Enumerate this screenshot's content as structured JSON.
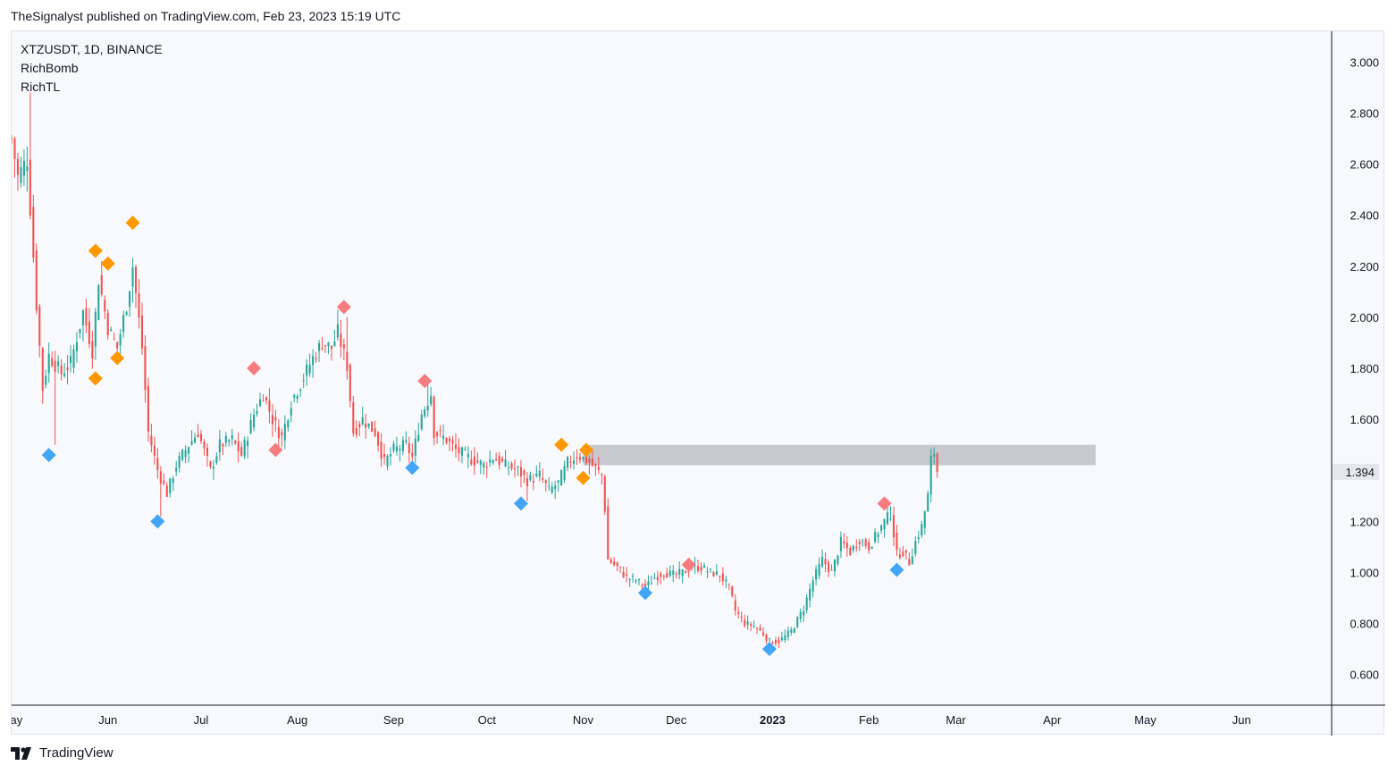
{
  "header": {
    "caption": "TheSignalyst published on TradingView.com, Feb 23, 2023 15:19 UTC"
  },
  "legend": {
    "symbol_line": "XTZUSDT, 1D, BINANCE",
    "indicator_1": "RichBomb",
    "indicator_2": "RichTL"
  },
  "footer": {
    "brand": "TradingView"
  },
  "colors": {
    "up": "#26a69a",
    "down": "#ef5350",
    "zone": "#c4c6cc",
    "orange_marker": "#ff9800",
    "red_marker": "#f77c80",
    "blue_marker": "#42a5f5",
    "bg": "#f8f9fd"
  },
  "chart_data": {
    "type": "candlestick",
    "symbol": "XTZUSDT",
    "interval": "1D",
    "exchange": "BINANCE",
    "y_axis": {
      "ticks": [
        0.6,
        0.8,
        1.0,
        1.2,
        1.4,
        1.6,
        1.8,
        2.0,
        2.2,
        2.4,
        2.6,
        2.8,
        3.0
      ],
      "tick_labels": [
        "0.600",
        "0.800",
        "1.000",
        "1.200",
        "1.400",
        "1.600",
        "1.800",
        "2.000",
        "2.200",
        "2.400",
        "2.600",
        "2.800",
        "3.000"
      ],
      "range": [
        0.48,
        3.12
      ]
    },
    "x_axis": {
      "range": [
        "2022-05-01",
        "2023-06-30"
      ],
      "ticks": [
        {
          "date": "2022-05-01",
          "label": "May"
        },
        {
          "date": "2022-06-01",
          "label": "Jun"
        },
        {
          "date": "2022-07-01",
          "label": "Jul"
        },
        {
          "date": "2022-08-01",
          "label": "Aug"
        },
        {
          "date": "2022-09-01",
          "label": "Sep"
        },
        {
          "date": "2022-10-01",
          "label": "Oct"
        },
        {
          "date": "2022-11-01",
          "label": "Nov"
        },
        {
          "date": "2022-12-01",
          "label": "Dec"
        },
        {
          "date": "2023-01-01",
          "label": "2023",
          "bold": true
        },
        {
          "date": "2023-02-01",
          "label": "Feb"
        },
        {
          "date": "2023-03-01",
          "label": "Mar"
        },
        {
          "date": "2023-04-01",
          "label": "Apr"
        },
        {
          "date": "2023-05-01",
          "label": "May"
        },
        {
          "date": "2023-06-01",
          "label": "Jun"
        }
      ]
    },
    "last_price": {
      "value": 1.394,
      "label": "1.394"
    },
    "zone": {
      "from": "2022-11-01",
      "to": "2023-04-15",
      "low": 1.42,
      "high": 1.5
    },
    "path_points": [
      [
        "2022-05-01",
        2.7
      ],
      [
        "2022-05-03",
        2.55
      ],
      [
        "2022-05-06",
        2.62
      ],
      [
        "2022-05-09",
        2.05
      ],
      [
        "2022-05-11",
        1.72
      ],
      [
        "2022-05-13",
        1.85
      ],
      [
        "2022-05-17",
        1.78
      ],
      [
        "2022-05-20",
        1.82
      ],
      [
        "2022-05-24",
        2.02
      ],
      [
        "2022-05-27",
        1.87
      ],
      [
        "2022-05-29",
        2.15
      ],
      [
        "2022-06-01",
        1.96
      ],
      [
        "2022-06-04",
        1.88
      ],
      [
        "2022-06-07",
        2.05
      ],
      [
        "2022-06-09",
        2.2
      ],
      [
        "2022-06-12",
        1.88
      ],
      [
        "2022-06-14",
        1.55
      ],
      [
        "2022-06-17",
        1.4
      ],
      [
        "2022-06-20",
        1.31
      ],
      [
        "2022-06-23",
        1.42
      ],
      [
        "2022-06-27",
        1.5
      ],
      [
        "2022-06-30",
        1.55
      ],
      [
        "2022-07-04",
        1.4
      ],
      [
        "2022-07-07",
        1.5
      ],
      [
        "2022-07-11",
        1.52
      ],
      [
        "2022-07-14",
        1.46
      ],
      [
        "2022-07-18",
        1.62
      ],
      [
        "2022-07-21",
        1.7
      ],
      [
        "2022-07-24",
        1.6
      ],
      [
        "2022-07-27",
        1.53
      ],
      [
        "2022-07-30",
        1.67
      ],
      [
        "2022-08-02",
        1.74
      ],
      [
        "2022-08-06",
        1.84
      ],
      [
        "2022-08-09",
        1.9
      ],
      [
        "2022-08-12",
        1.88
      ],
      [
        "2022-08-14",
        1.94
      ],
      [
        "2022-08-17",
        1.81
      ],
      [
        "2022-08-19",
        1.55
      ],
      [
        "2022-08-22",
        1.6
      ],
      [
        "2022-08-26",
        1.55
      ],
      [
        "2022-08-29",
        1.43
      ],
      [
        "2022-09-01",
        1.48
      ],
      [
        "2022-09-05",
        1.5
      ],
      [
        "2022-09-07",
        1.45
      ],
      [
        "2022-09-10",
        1.62
      ],
      [
        "2022-09-13",
        1.7
      ],
      [
        "2022-09-14",
        1.55
      ],
      [
        "2022-09-18",
        1.52
      ],
      [
        "2022-09-21",
        1.48
      ],
      [
        "2022-09-25",
        1.45
      ],
      [
        "2022-09-30",
        1.42
      ],
      [
        "2022-10-03",
        1.45
      ],
      [
        "2022-10-07",
        1.42
      ],
      [
        "2022-10-11",
        1.4
      ],
      [
        "2022-10-14",
        1.36
      ],
      [
        "2022-10-18",
        1.38
      ],
      [
        "2022-10-21",
        1.32
      ],
      [
        "2022-10-24",
        1.35
      ],
      [
        "2022-10-27",
        1.43
      ],
      [
        "2022-10-30",
        1.46
      ],
      [
        "2022-11-02",
        1.44
      ],
      [
        "2022-11-04",
        1.42
      ],
      [
        "2022-11-07",
        1.38
      ],
      [
        "2022-11-08",
        1.25
      ],
      [
        "2022-11-09",
        1.05
      ],
      [
        "2022-11-12",
        1.02
      ],
      [
        "2022-11-15",
        0.98
      ],
      [
        "2022-11-18",
        0.97
      ],
      [
        "2022-11-21",
        0.94
      ],
      [
        "2022-11-24",
        0.98
      ],
      [
        "2022-11-27",
        1.0
      ],
      [
        "2022-11-30",
        0.99
      ],
      [
        "2022-12-03",
        1.0
      ],
      [
        "2022-12-06",
        1.02
      ],
      [
        "2022-12-09",
        1.02
      ],
      [
        "2022-12-12",
        1.0
      ],
      [
        "2022-12-15",
        0.99
      ],
      [
        "2022-12-18",
        0.94
      ],
      [
        "2022-12-20",
        0.85
      ],
      [
        "2022-12-23",
        0.8
      ],
      [
        "2022-12-26",
        0.79
      ],
      [
        "2022-12-29",
        0.76
      ],
      [
        "2022-12-31",
        0.73
      ],
      [
        "2023-01-03",
        0.73
      ],
      [
        "2023-01-07",
        0.77
      ],
      [
        "2023-01-11",
        0.86
      ],
      [
        "2023-01-14",
        0.97
      ],
      [
        "2023-01-17",
        1.05
      ],
      [
        "2023-01-20",
        1.0
      ],
      [
        "2023-01-23",
        1.12
      ],
      [
        "2023-01-26",
        1.08
      ],
      [
        "2023-01-29",
        1.13
      ],
      [
        "2023-02-01",
        1.1
      ],
      [
        "2023-02-04",
        1.16
      ],
      [
        "2023-02-06",
        1.2
      ],
      [
        "2023-02-08",
        1.23
      ],
      [
        "2023-02-10",
        1.07
      ],
      [
        "2023-02-12",
        1.08
      ],
      [
        "2023-02-14",
        1.04
      ],
      [
        "2023-02-16",
        1.12
      ],
      [
        "2023-02-18",
        1.18
      ],
      [
        "2023-02-20",
        1.3
      ],
      [
        "2023-02-21",
        1.44
      ],
      [
        "2023-02-22",
        1.47
      ],
      [
        "2023-02-23",
        1.394
      ]
    ],
    "spikes": [
      {
        "date": "2022-05-07",
        "high": 2.88
      },
      {
        "date": "2022-05-15",
        "low": 1.5
      },
      {
        "date": "2022-06-18",
        "low": 1.22
      },
      {
        "date": "2022-07-26",
        "low": 1.49
      },
      {
        "date": "2022-08-17",
        "high": 2.0
      },
      {
        "date": "2022-09-12",
        "high": 1.74
      },
      {
        "date": "2022-10-14",
        "low": 1.28
      },
      {
        "date": "2022-11-21",
        "low": 0.93
      },
      {
        "date": "2022-12-31",
        "low": 0.71
      },
      {
        "date": "2023-02-08",
        "high": 1.26
      },
      {
        "date": "2023-02-15",
        "low": 1.03
      },
      {
        "date": "2023-02-22",
        "high": 1.49
      }
    ],
    "markers": [
      {
        "date": "2022-05-28",
        "price": 2.26,
        "type": "orange"
      },
      {
        "date": "2022-06-01",
        "price": 2.21,
        "type": "orange"
      },
      {
        "date": "2022-06-09",
        "price": 2.37,
        "type": "orange"
      },
      {
        "date": "2022-05-28",
        "price": 1.76,
        "type": "orange"
      },
      {
        "date": "2022-06-04",
        "price": 1.84,
        "type": "orange"
      },
      {
        "date": "2022-05-13",
        "price": 1.46,
        "type": "blue"
      },
      {
        "date": "2022-06-17",
        "price": 1.2,
        "type": "blue"
      },
      {
        "date": "2022-07-25",
        "price": 1.48,
        "type": "red"
      },
      {
        "date": "2022-07-18",
        "price": 1.8,
        "type": "red"
      },
      {
        "date": "2022-08-16",
        "price": 2.04,
        "type": "red"
      },
      {
        "date": "2022-09-07",
        "price": 1.41,
        "type": "blue"
      },
      {
        "date": "2022-09-11",
        "price": 1.75,
        "type": "red"
      },
      {
        "date": "2022-10-12",
        "price": 1.27,
        "type": "blue"
      },
      {
        "date": "2022-10-25",
        "price": 1.5,
        "type": "orange"
      },
      {
        "date": "2022-11-02",
        "price": 1.48,
        "type": "orange"
      },
      {
        "date": "2022-11-01",
        "price": 1.37,
        "type": "orange"
      },
      {
        "date": "2022-11-21",
        "price": 0.92,
        "type": "blue"
      },
      {
        "date": "2022-12-05",
        "price": 1.03,
        "type": "red"
      },
      {
        "date": "2022-12-31",
        "price": 0.7,
        "type": "blue"
      },
      {
        "date": "2023-02-06",
        "price": 1.27,
        "type": "red"
      },
      {
        "date": "2023-02-10",
        "price": 1.01,
        "type": "blue"
      }
    ]
  }
}
